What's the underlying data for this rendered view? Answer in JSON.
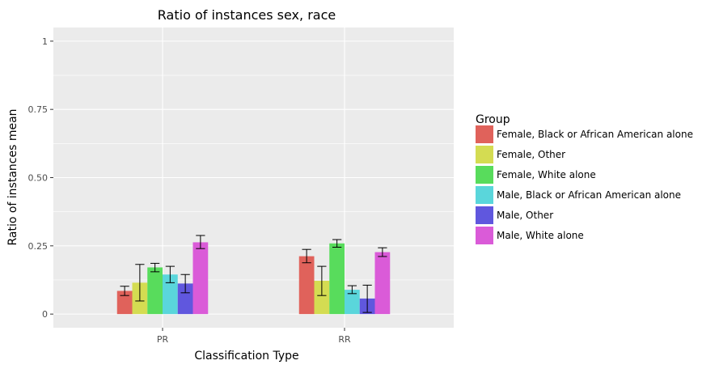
{
  "chart_data": {
    "type": "bar",
    "title": "Ratio of instances sex, race",
    "xlabel": "Classification Type",
    "ylabel": "Ratio of instances mean",
    "categories": [
      "PR",
      "RR"
    ],
    "ylim": [
      -0.05,
      1.05
    ],
    "yticks": [
      {
        "value": 0,
        "label": "0"
      },
      {
        "value": 0.25,
        "label": "0.25"
      },
      {
        "value": 0.5,
        "label": "0.50"
      },
      {
        "value": 0.75,
        "label": "0.75"
      },
      {
        "value": 1,
        "label": "1"
      }
    ],
    "grid": true,
    "legend": {
      "title": "Group",
      "placement": "right"
    },
    "series": [
      {
        "name": "Female, Black or African American alone",
        "color": "#e0625b",
        "values": [
          0.085,
          0.212
        ],
        "err_low": [
          0.068,
          0.188
        ],
        "err_high": [
          0.102,
          0.237
        ]
      },
      {
        "name": "Female, Other",
        "color": "#d4dc52",
        "values": [
          0.115,
          0.122
        ],
        "err_low": [
          0.048,
          0.068
        ],
        "err_high": [
          0.182,
          0.175
        ]
      },
      {
        "name": "Female, White alone",
        "color": "#58dc5c",
        "values": [
          0.171,
          0.259
        ],
        "err_low": [
          0.155,
          0.245
        ],
        "err_high": [
          0.186,
          0.273
        ]
      },
      {
        "name": "Male, Black or African American alone",
        "color": "#5ad6db",
        "values": [
          0.145,
          0.089
        ],
        "err_low": [
          0.115,
          0.075
        ],
        "err_high": [
          0.175,
          0.104
        ]
      },
      {
        "name": "Male, Other",
        "color": "#6057de",
        "values": [
          0.112,
          0.057
        ],
        "err_low": [
          0.078,
          0.006
        ],
        "err_high": [
          0.145,
          0.106
        ]
      },
      {
        "name": "Male, White alone",
        "color": "#da5bd8",
        "values": [
          0.263,
          0.227
        ],
        "err_low": [
          0.24,
          0.211
        ],
        "err_high": [
          0.288,
          0.243
        ]
      }
    ]
  }
}
